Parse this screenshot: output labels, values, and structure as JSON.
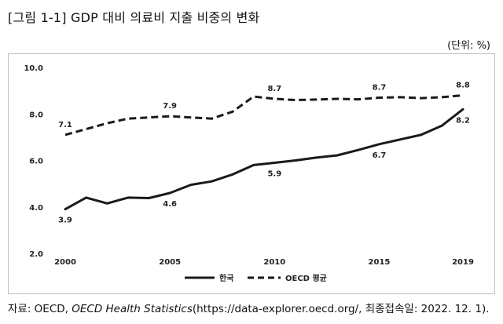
{
  "figure": {
    "title": "[그림 1-1] GDP 대비 의료비 지출 비중의 변화",
    "unit_label": "(단위: %)",
    "source_prefix": "자료: OECD, ",
    "source_italic": "OECD Health Statistics",
    "source_suffix": "(https://data-explorer.oecd.org/, 최종접속일: 2022. 12. 1)."
  },
  "chart_data": {
    "type": "line",
    "title": "",
    "xlabel": "",
    "ylabel": "",
    "x": [
      2000,
      2001,
      2002,
      2003,
      2004,
      2005,
      2006,
      2007,
      2008,
      2009,
      2010,
      2011,
      2012,
      2013,
      2014,
      2015,
      2016,
      2017,
      2018,
      2019
    ],
    "xticks": [
      2000,
      2005,
      2010,
      2015,
      2019
    ],
    "xtick_labels": [
      "2000",
      "2005",
      "2010",
      "2015",
      "2019"
    ],
    "ylim": [
      2.0,
      10.0
    ],
    "yticks": [
      2.0,
      4.0,
      6.0,
      8.0,
      10.0
    ],
    "ytick_labels": [
      "2.0",
      "4.0",
      "6.0",
      "8.0",
      "10.0"
    ],
    "grid": false,
    "legend_position": "bottom",
    "series": [
      {
        "name": "한국",
        "style": "solid",
        "color": "#1a1a1a",
        "values": [
          3.9,
          4.4,
          4.15,
          4.4,
          4.38,
          4.6,
          4.95,
          5.1,
          5.4,
          5.8,
          5.9,
          6.0,
          6.12,
          6.22,
          6.45,
          6.7,
          6.9,
          7.1,
          7.5,
          8.2
        ],
        "labels": [
          {
            "x": 2000,
            "text": "3.9",
            "pos": "below"
          },
          {
            "x": 2005,
            "text": "4.6",
            "pos": "below"
          },
          {
            "x": 2010,
            "text": "5.9",
            "pos": "below"
          },
          {
            "x": 2015,
            "text": "6.7",
            "pos": "below"
          },
          {
            "x": 2019,
            "text": "8.2",
            "pos": "below"
          }
        ]
      },
      {
        "name": "OECD 평균",
        "style": "dashed",
        "color": "#1a1a1a",
        "values": [
          7.1,
          7.35,
          7.6,
          7.8,
          7.85,
          7.9,
          7.85,
          7.8,
          8.1,
          8.75,
          8.65,
          8.6,
          8.62,
          8.65,
          8.63,
          8.7,
          8.72,
          8.68,
          8.72,
          8.8
        ],
        "labels": [
          {
            "x": 2000,
            "text": "7.1",
            "pos": "above"
          },
          {
            "x": 2005,
            "text": "7.9",
            "pos": "above"
          },
          {
            "x": 2010,
            "text": "8.7",
            "pos": "above"
          },
          {
            "x": 2015,
            "text": "8.7",
            "pos": "above"
          },
          {
            "x": 2019,
            "text": "8.8",
            "pos": "above"
          }
        ]
      }
    ]
  }
}
